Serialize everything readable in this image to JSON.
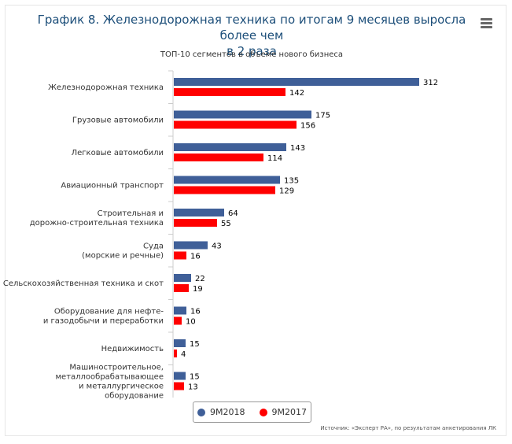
{
  "header": {
    "title_line1": "График 8. Железнодорожная техника по итогам 9 месяцев выросла более чем",
    "title_line2": "в 2 раза",
    "subtitle": "ТОП-10 сегментов в объеме нового бизнеса",
    "menu_icon": "hamburger-menu-icon"
  },
  "source": "Источник: «Эксперт РА», по результатам анкетирования ЛК",
  "chart_data": {
    "type": "bar",
    "orientation": "horizontal",
    "categories": [
      [
        "Железнодорожная техника"
      ],
      [
        "Грузовые автомобили"
      ],
      [
        "Легковые автомобили"
      ],
      [
        "Авиационный транспорт"
      ],
      [
        "Строительная и",
        "дорожно-строительная техника"
      ],
      [
        "Суда",
        "(морские и речные)"
      ],
      [
        "Сельскохозяйственная техника и скот"
      ],
      [
        "Оборудование для нефте-",
        "и газодобычи и переработки"
      ],
      [
        "Недвижимость"
      ],
      [
        "Машиностроительное,",
        "металлообрабатывающее",
        "и металлургическое",
        "оборудование"
      ]
    ],
    "series": [
      {
        "name": "9М2018",
        "color": "#3f5f98",
        "values": [
          312,
          175,
          143,
          135,
          64,
          43,
          22,
          16,
          15,
          15
        ]
      },
      {
        "name": "9М2017",
        "color": "#ff0000",
        "values": [
          142,
          156,
          114,
          129,
          55,
          16,
          19,
          10,
          4,
          13
        ]
      }
    ],
    "xlim": [
      0,
      350
    ],
    "grid": false,
    "legend_position": "bottom"
  }
}
